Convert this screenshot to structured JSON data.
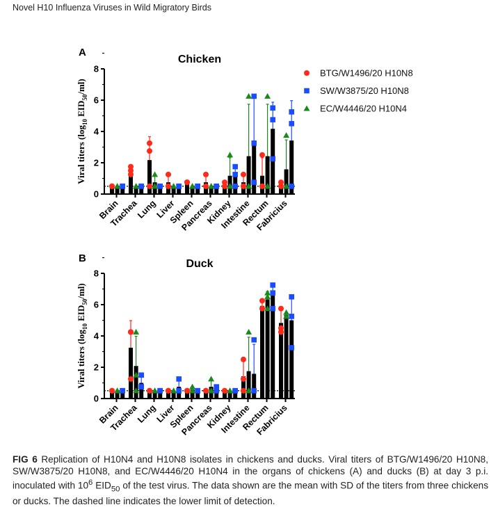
{
  "header": "Novel H10 Influenza Viruses in Wild Migratory Birds",
  "caption": {
    "label": "FIG 6",
    "text1": " Replication of H10N4 and H10N8 isolates in chickens and ducks. Viral titers of BTG/W1496/20 H10N8, SW/W3875/20 H10N8, and EC/W4446/20 H10N4 in the organs of chickens (A) and ducks (B) at day 3 p.i. inoculated with 10",
    "sup": "6",
    "text2": " EID",
    "sub": "50",
    "text3": " of the test virus. The data shown are the mean with SD of the titers from three chickens or ducks. The dashed line indicates the lower limit of detection."
  },
  "legend": [
    {
      "label": "BTG/W1496/20 H10N8",
      "color": "#ff2a1a",
      "marker": "circle"
    },
    {
      "label": "SW/W3875/20 H10N8",
      "color": "#1a4dff",
      "marker": "square"
    },
    {
      "label": "EC/W4446/20 H10N4",
      "color": "#1a8a1a",
      "marker": "triangle"
    }
  ],
  "chart_data": [
    {
      "panel": "A",
      "type": "bar",
      "title": "Chicken",
      "ylabel": "Viral titers (log10 EID50/ml)",
      "ylabel_parts": [
        "Viral titers (log",
        "10",
        " EID",
        "50",
        "/ml)"
      ],
      "ylim": [
        0,
        8
      ],
      "yticks": [
        "0",
        "2",
        "4",
        "6",
        "8"
      ],
      "detection_limit": 0.5,
      "bar_order": [
        "BTG/W1496/20 H10N8",
        "EC/W4446/20 H10N4",
        "SW/W3875/20 H10N8"
      ],
      "categories": [
        "Brain",
        "Trachea",
        "Lung",
        "Liver",
        "Spleen",
        "Pancreas",
        "Kidney",
        "Intestine",
        "Rectum",
        "Fabricius"
      ],
      "series": [
        {
          "name": "BTG/W1496/20 H10N8",
          "mean": [
            0.5,
            1.5,
            2.17,
            0.75,
            0.75,
            0.75,
            0.58,
            0.75,
            1.17,
            0.58
          ],
          "sd": [
            0,
            0.25,
            1.5,
            0.43,
            0,
            0.43,
            0.14,
            0.43,
            1.15,
            0.14
          ],
          "points": [
            [
              0.5,
              0.5,
              0.5
            ],
            [
              1.5,
              1.75,
              1.25
            ],
            [
              3.25,
              2.75,
              0.5
            ],
            [
              1.25,
              0.5,
              0.5
            ],
            [
              0.75,
              0.75,
              0.75
            ],
            [
              1.25,
              0.5,
              0.5
            ],
            [
              0.75,
              0.5,
              0.5
            ],
            [
              1.25,
              0.5,
              0.5
            ],
            [
              2.5,
              0.5,
              0.5
            ],
            [
              0.75,
              0.5,
              0.5
            ]
          ]
        },
        {
          "name": "EC/W4446/20 H10N4",
          "mean": [
            0.5,
            0.5,
            0.75,
            0.5,
            0.5,
            0.5,
            1.17,
            2.42,
            2.42,
            1.58
          ],
          "sd": [
            0,
            0,
            0.43,
            0,
            0,
            0,
            1.15,
            3.32,
            3.32,
            1.88
          ],
          "points": [
            [
              0.5,
              0.5,
              0.5
            ],
            [
              0.5,
              0.5,
              0.5
            ],
            [
              1.25,
              0.5,
              0.5
            ],
            [
              0.5,
              0.5,
              0.5
            ],
            [
              0.5,
              0.5,
              0.5
            ],
            [
              0.5,
              0.5,
              0.5
            ],
            [
              2.5,
              0.5,
              0.5
            ],
            [
              6.25,
              0.5,
              0.5
            ],
            [
              6.25,
              0.5,
              0.5
            ],
            [
              3.75,
              0.5,
              0.5
            ]
          ]
        },
        {
          "name": "SW/W3875/20 H10N8",
          "mean": [
            0.5,
            0.5,
            0.5,
            0.5,
            0.5,
            0.5,
            1.17,
            3.42,
            4.17,
            3.42
          ],
          "sd": [
            0,
            0,
            0,
            0,
            0,
            0,
            0.63,
            2.78,
            1.7,
            2.55
          ],
          "points": [
            [
              0.5,
              0.5,
              0.5
            ],
            [
              0.5,
              0.5,
              0.5
            ],
            [
              0.5,
              0.5,
              0.5
            ],
            [
              0.5,
              0.5,
              0.5
            ],
            [
              0.5,
              0.5,
              0.5
            ],
            [
              0.5,
              0.5,
              0.5
            ],
            [
              1.75,
              1.25,
              0.5
            ],
            [
              6.25,
              3.25,
              0.75
            ],
            [
              5.5,
              4.75,
              2.25
            ],
            [
              5.25,
              4.5,
              0.5
            ]
          ]
        }
      ]
    },
    {
      "panel": "B",
      "type": "bar",
      "title": "Duck",
      "ylabel": "Viral titers (log10 EID50/ml)",
      "ylabel_parts": [
        "Viral titers (log",
        "10",
        " EID",
        "50",
        "/ml)"
      ],
      "ylim": [
        0,
        8
      ],
      "yticks": [
        "0",
        "2",
        "4",
        "6",
        "8"
      ],
      "detection_limit": 0.5,
      "bar_order": [
        "BTG/W1496/20 H10N8",
        "EC/W4446/20 H10N4",
        "SW/W3875/20 H10N8"
      ],
      "categories": [
        "Brain",
        "Trachea",
        "Lung",
        "Liver",
        "Spleen",
        "Pancreas",
        "Kidney",
        "Intestine",
        "Rectum",
        "Fabricius"
      ],
      "series": [
        {
          "name": "BTG/W1496/20 H10N8",
          "mean": [
            0.5,
            3.25,
            0.5,
            0.5,
            0.5,
            0.5,
            0.5,
            1.42,
            5.92,
            4.83
          ],
          "sd": [
            0,
            1.73,
            0,
            0,
            0,
            0,
            0,
            1.01,
            0.29,
            0.8
          ],
          "points": [
            [
              0.5,
              0.5,
              0.5
            ],
            [
              4.25,
              4.25,
              1.25
            ],
            [
              0.5,
              0.5,
              0.5
            ],
            [
              0.5,
              0.5,
              0.5
            ],
            [
              0.5,
              0.5,
              0.5
            ],
            [
              0.5,
              0.5,
              0.5
            ],
            [
              0.5,
              0.5,
              0.5
            ],
            [
              2.5,
              1.25,
              0.5
            ],
            [
              6.25,
              5.75,
              5.75
            ],
            [
              5.75,
              4.5,
              4.25
            ]
          ]
        },
        {
          "name": "EC/W4446/20 H10N4",
          "mean": [
            0.5,
            2.08,
            0.5,
            0.5,
            0.58,
            0.75,
            0.5,
            1.75,
            6.33,
            5.33
          ],
          "sd": [
            0,
            1.9,
            0,
            0,
            0.14,
            0.43,
            0,
            2.17,
            0.52,
            0.14
          ],
          "points": [
            [
              0.5,
              0.5,
              0.5
            ],
            [
              4.25,
              1.5,
              0.5
            ],
            [
              0.5,
              0.5,
              0.5
            ],
            [
              0.5,
              0.5,
              0.5
            ],
            [
              0.75,
              0.5,
              0.5
            ],
            [
              1.25,
              0.5,
              0.5
            ],
            [
              0.5,
              0.5,
              0.5
            ],
            [
              4.25,
              0.5,
              0.5
            ],
            [
              6.75,
              6.5,
              5.75
            ],
            [
              5.5,
              5.25,
              5.25
            ]
          ]
        },
        {
          "name": "SW/W3875/20 H10N8",
          "mean": [
            0.5,
            1.0,
            0.5,
            0.75,
            0.5,
            0.58,
            0.5,
            1.58,
            6.58,
            5.0
          ],
          "sd": [
            0,
            0.43,
            0,
            0.43,
            0,
            0.14,
            0,
            1.88,
            0.76,
            1.6
          ],
          "points": [
            [
              0.5,
              0.5,
              0.5
            ],
            [
              1.5,
              0.75,
              0.75
            ],
            [
              0.5,
              0.5,
              0.5
            ],
            [
              1.25,
              0.5,
              0.5
            ],
            [
              0.5,
              0.5,
              0.5
            ],
            [
              0.75,
              0.5,
              0.5
            ],
            [
              0.5,
              0.5,
              0.5
            ],
            [
              3.75,
              0.5,
              0.5
            ],
            [
              7.25,
              6.75,
              5.75
            ],
            [
              6.5,
              5.25,
              3.25
            ]
          ]
        }
      ]
    }
  ]
}
